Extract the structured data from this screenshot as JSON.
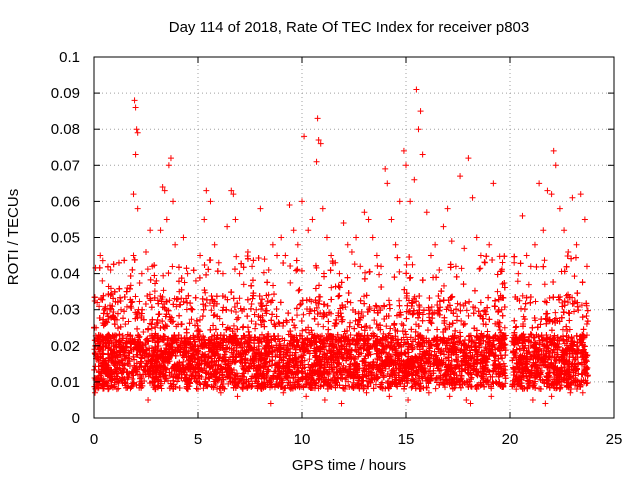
{
  "chart_data": {
    "type": "scatter",
    "title": "Day 114 of 2018, Rate Of TEC Index for receiver p803",
    "xlabel": "GPS time / hours",
    "ylabel": "ROTI / TECUs",
    "xlim": [
      0,
      25
    ],
    "ylim": [
      0,
      0.1
    ],
    "x_ticks": [
      0,
      5,
      10,
      15,
      20,
      25
    ],
    "x_tick_labels": [
      "0",
      "5",
      "10",
      "15",
      "20",
      "25"
    ],
    "y_ticks": [
      0,
      0.01,
      0.02,
      0.03,
      0.04,
      0.05,
      0.06,
      0.07,
      0.08,
      0.09,
      0.1
    ],
    "y_tick_labels": [
      "0",
      "0.01",
      "0.02",
      "0.03",
      "0.04",
      "0.05",
      "0.06",
      "0.07",
      "0.08",
      "0.09",
      "0.1"
    ],
    "grid": true,
    "legend": "none",
    "marker": "plus",
    "color": "#ff0000",
    "data_gap": [
      19.8,
      20.1
    ],
    "series": [
      {
        "points": [
          [
            0.05,
            0.007
          ],
          [
            0.1,
            0.025
          ],
          [
            0.15,
            0.032
          ],
          [
            0.3,
            0.045
          ],
          [
            0.4,
            0.038
          ],
          [
            0.6,
            0.02
          ],
          [
            0.8,
            0.041
          ],
          [
            0.9,
            0.028
          ],
          [
            1.0,
            0.035
          ],
          [
            1.2,
            0.043
          ],
          [
            1.3,
            0.03
          ],
          [
            1.4,
            0.022
          ],
          [
            1.6,
            0.036
          ],
          [
            1.8,
            0.032
          ],
          [
            1.9,
            0.045
          ],
          [
            1.95,
            0.088
          ],
          [
            2.0,
            0.086
          ],
          [
            2.05,
            0.08
          ],
          [
            2.1,
            0.079
          ],
          [
            2.0,
            0.073
          ],
          [
            1.9,
            0.062
          ],
          [
            2.1,
            0.058
          ],
          [
            2.3,
            0.04
          ],
          [
            2.5,
            0.046
          ],
          [
            2.7,
            0.052
          ],
          [
            2.8,
            0.042
          ],
          [
            3.0,
            0.038
          ],
          [
            3.2,
            0.052
          ],
          [
            3.3,
            0.064
          ],
          [
            3.4,
            0.063
          ],
          [
            3.5,
            0.055
          ],
          [
            3.6,
            0.07
          ],
          [
            3.7,
            0.072
          ],
          [
            3.8,
            0.06
          ],
          [
            3.9,
            0.048
          ],
          [
            4.1,
            0.035
          ],
          [
            4.3,
            0.05
          ],
          [
            4.5,
            0.04
          ],
          [
            4.7,
            0.03
          ],
          [
            4.9,
            0.038
          ],
          [
            5.1,
            0.045
          ],
          [
            5.3,
            0.055
          ],
          [
            5.4,
            0.063
          ],
          [
            5.6,
            0.06
          ],
          [
            5.8,
            0.048
          ],
          [
            6.0,
            0.043
          ],
          [
            6.2,
            0.04
          ],
          [
            6.4,
            0.053
          ],
          [
            6.6,
            0.063
          ],
          [
            6.7,
            0.062
          ],
          [
            6.8,
            0.055
          ],
          [
            7.0,
            0.04
          ],
          [
            7.2,
            0.037
          ],
          [
            7.4,
            0.046
          ],
          [
            7.6,
            0.042
          ],
          [
            7.8,
            0.03
          ],
          [
            8.0,
            0.058
          ],
          [
            8.2,
            0.044
          ],
          [
            8.4,
            0.041
          ],
          [
            8.6,
            0.048
          ],
          [
            8.8,
            0.045
          ],
          [
            9.0,
            0.05
          ],
          [
            9.2,
            0.045
          ],
          [
            9.4,
            0.059
          ],
          [
            9.6,
            0.052
          ],
          [
            9.8,
            0.048
          ],
          [
            10.0,
            0.06
          ],
          [
            10.1,
            0.078
          ],
          [
            10.3,
            0.052
          ],
          [
            10.5,
            0.055
          ],
          [
            10.7,
            0.071
          ],
          [
            10.75,
            0.083
          ],
          [
            10.8,
            0.077
          ],
          [
            10.9,
            0.076
          ],
          [
            11.0,
            0.058
          ],
          [
            11.2,
            0.05
          ],
          [
            11.4,
            0.045
          ],
          [
            11.6,
            0.043
          ],
          [
            11.8,
            0.04
          ],
          [
            12.0,
            0.054
          ],
          [
            12.2,
            0.048
          ],
          [
            12.4,
            0.046
          ],
          [
            12.6,
            0.05
          ],
          [
            12.8,
            0.042
          ],
          [
            13.0,
            0.057
          ],
          [
            13.2,
            0.055
          ],
          [
            13.4,
            0.05
          ],
          [
            13.6,
            0.045
          ],
          [
            13.8,
            0.042
          ],
          [
            14.0,
            0.069
          ],
          [
            14.1,
            0.065
          ],
          [
            14.3,
            0.055
          ],
          [
            14.5,
            0.048
          ],
          [
            14.7,
            0.06
          ],
          [
            14.9,
            0.074
          ],
          [
            15.0,
            0.07
          ],
          [
            15.2,
            0.06
          ],
          [
            15.4,
            0.066
          ],
          [
            15.5,
            0.091
          ],
          [
            15.6,
            0.08
          ],
          [
            15.7,
            0.085
          ],
          [
            15.8,
            0.073
          ],
          [
            16.0,
            0.057
          ],
          [
            16.2,
            0.045
          ],
          [
            16.4,
            0.048
          ],
          [
            16.6,
            0.041
          ],
          [
            16.8,
            0.053
          ],
          [
            17.0,
            0.058
          ],
          [
            17.2,
            0.049
          ],
          [
            17.4,
            0.042
          ],
          [
            17.6,
            0.067
          ],
          [
            17.8,
            0.047
          ],
          [
            18.0,
            0.072
          ],
          [
            18.2,
            0.061
          ],
          [
            18.4,
            0.05
          ],
          [
            18.6,
            0.045
          ],
          [
            18.8,
            0.043
          ],
          [
            19.0,
            0.048
          ],
          [
            19.2,
            0.065
          ],
          [
            19.4,
            0.035
          ],
          [
            19.6,
            0.03
          ],
          [
            19.75,
            0.025
          ],
          [
            20.2,
            0.043
          ],
          [
            20.4,
            0.04
          ],
          [
            20.6,
            0.056
          ],
          [
            20.8,
            0.045
          ],
          [
            21.0,
            0.042
          ],
          [
            21.2,
            0.048
          ],
          [
            21.4,
            0.065
          ],
          [
            21.6,
            0.052
          ],
          [
            21.8,
            0.063
          ],
          [
            22.0,
            0.062
          ],
          [
            22.1,
            0.074
          ],
          [
            22.2,
            0.07
          ],
          [
            22.4,
            0.058
          ],
          [
            22.6,
            0.052
          ],
          [
            22.8,
            0.046
          ],
          [
            23.0,
            0.061
          ],
          [
            23.2,
            0.048
          ],
          [
            23.4,
            0.062
          ],
          [
            23.6,
            0.055
          ],
          [
            23.7,
            0.042
          ],
          [
            0.2,
            0.009
          ],
          [
            1.1,
            0.008
          ],
          [
            2.2,
            0.01
          ],
          [
            3.1,
            0.009
          ],
          [
            4.0,
            0.011
          ],
          [
            5.0,
            0.008
          ],
          [
            6.1,
            0.007
          ],
          [
            6.9,
            0.006
          ],
          [
            7.9,
            0.009
          ],
          [
            9.1,
            0.007
          ],
          [
            10.2,
            0.006
          ],
          [
            11.1,
            0.005
          ],
          [
            12.1,
            0.009
          ],
          [
            13.1,
            0.007
          ],
          [
            14.2,
            0.006
          ],
          [
            15.1,
            0.005
          ],
          [
            16.1,
            0.007
          ],
          [
            17.1,
            0.006
          ],
          [
            18.1,
            0.004
          ],
          [
            19.1,
            0.006
          ],
          [
            20.3,
            0.008
          ],
          [
            21.1,
            0.005
          ],
          [
            22.0,
            0.006
          ],
          [
            22.9,
            0.007
          ],
          [
            23.5,
            0.007
          ],
          [
            2.6,
            0.005
          ],
          [
            8.5,
            0.004
          ],
          [
            11.9,
            0.004
          ],
          [
            17.9,
            0.005
          ],
          [
            21.7,
            0.004
          ]
        ]
      }
    ]
  }
}
